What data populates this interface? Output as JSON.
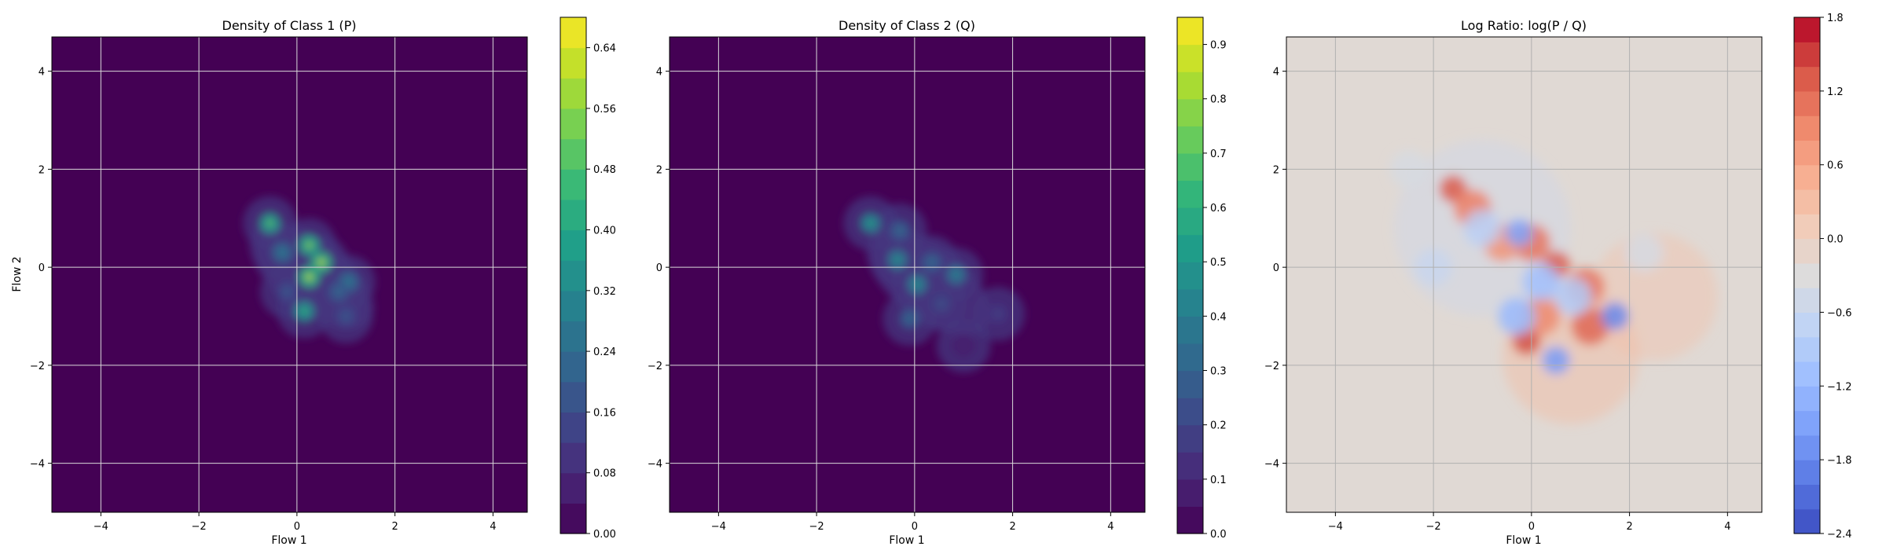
{
  "chart_data": [
    {
      "type": "heatmap",
      "title": "Density of Class 1 (P)",
      "xlabel": "Flow 1",
      "ylabel": "Flow 2",
      "xlim": [
        -5,
        4.7
      ],
      "ylim": [
        -5,
        4.7
      ],
      "xticks": [
        -4,
        -2,
        0,
        2,
        4
      ],
      "yticks": [
        -4,
        -2,
        0,
        2,
        4
      ],
      "grid": true,
      "colormap": "viridis",
      "colorbar": {
        "ticks": [
          0.0,
          0.08,
          0.16,
          0.24,
          0.32,
          0.4,
          0.48,
          0.56,
          0.64
        ],
        "tick_labels": [
          "0.00",
          "0.08",
          "0.16",
          "0.24",
          "0.32",
          "0.40",
          "0.48",
          "0.56",
          "0.64"
        ],
        "range": [
          0,
          0.68
        ],
        "levels": 17
      },
      "density_blobs": [
        {
          "x": -0.55,
          "y": 0.9,
          "peak": 0.5
        },
        {
          "x": 0.25,
          "y": 0.45,
          "peak": 0.55
        },
        {
          "x": 0.5,
          "y": 0.1,
          "peak": 0.6
        },
        {
          "x": 0.25,
          "y": -0.2,
          "peak": 0.6
        },
        {
          "x": -0.3,
          "y": 0.3,
          "peak": 0.3
        },
        {
          "x": 1.05,
          "y": -0.3,
          "peak": 0.3
        },
        {
          "x": 0.15,
          "y": -0.9,
          "peak": 0.45
        },
        {
          "x": 0.85,
          "y": -0.5,
          "peak": 0.25
        },
        {
          "x": -0.2,
          "y": -0.5,
          "peak": 0.2
        },
        {
          "x": 1.0,
          "y": -1.0,
          "peak": 0.2
        }
      ]
    },
    {
      "type": "heatmap",
      "title": "Density of Class 2 (Q)",
      "xlabel": "Flow 1",
      "ylabel": "",
      "xlim": [
        -5,
        4.7
      ],
      "ylim": [
        -5,
        4.7
      ],
      "xticks": [
        -4,
        -2,
        0,
        2,
        4
      ],
      "yticks": [
        -4,
        -2,
        0,
        2,
        4
      ],
      "grid": true,
      "colormap": "viridis",
      "colorbar": {
        "ticks": [
          0.0,
          0.1,
          0.2,
          0.3,
          0.4,
          0.5,
          0.6,
          0.7,
          0.8,
          0.9
        ],
        "tick_labels": [
          "0.0",
          "0.1",
          "0.2",
          "0.3",
          "0.4",
          "0.5",
          "0.6",
          "0.7",
          "0.8",
          "0.9"
        ],
        "range": [
          0,
          0.95
        ],
        "levels": 19
      },
      "density_blobs": [
        {
          "x": -0.9,
          "y": 0.9,
          "peak": 0.55
        },
        {
          "x": -0.3,
          "y": 0.75,
          "peak": 0.35
        },
        {
          "x": -0.35,
          "y": 0.15,
          "peak": 0.5
        },
        {
          "x": 0.05,
          "y": -0.35,
          "peak": 0.5
        },
        {
          "x": 0.85,
          "y": -0.15,
          "peak": 0.45
        },
        {
          "x": 0.35,
          "y": 0.1,
          "peak": 0.35
        },
        {
          "x": -0.1,
          "y": -1.05,
          "peak": 0.35
        },
        {
          "x": 0.55,
          "y": -0.75,
          "peak": 0.25
        },
        {
          "x": 1.7,
          "y": -0.95,
          "peak": 0.2
        },
        {
          "x": 1.0,
          "y": -1.6,
          "peak": 0.1
        }
      ]
    },
    {
      "type": "heatmap",
      "title": "Log Ratio: log(P / Q)",
      "xlabel": "Flow 1",
      "ylabel": "",
      "xlim": [
        -5,
        4.7
      ],
      "ylim": [
        -5,
        4.7
      ],
      "xticks": [
        -4,
        -2,
        0,
        2,
        4
      ],
      "yticks": [
        -4,
        -2,
        0,
        2,
        4
      ],
      "grid": true,
      "colormap": "coolwarm",
      "colorbar": {
        "ticks": [
          -2.4,
          -1.8,
          -1.2,
          -0.6,
          0.0,
          0.6,
          1.2,
          1.8
        ],
        "tick_labels": [
          "−2.4",
          "−1.8",
          "−1.2",
          "−0.6",
          "0.0",
          "0.6",
          "1.2",
          "1.8"
        ],
        "range": [
          -2.4,
          1.8
        ],
        "levels": 21
      },
      "ratio_blobs": [
        {
          "x": -1.6,
          "y": 1.6,
          "value": 1.3
        },
        {
          "x": -1.2,
          "y": 1.2,
          "value": 1.0
        },
        {
          "x": 0.0,
          "y": 0.5,
          "value": 1.1
        },
        {
          "x": 0.5,
          "y": 0.05,
          "value": 1.3
        },
        {
          "x": 1.1,
          "y": -0.4,
          "value": 1.1
        },
        {
          "x": 1.2,
          "y": -1.2,
          "value": 1.2
        },
        {
          "x": -0.1,
          "y": -1.5,
          "value": 1.4
        },
        {
          "x": -0.6,
          "y": 0.5,
          "value": 0.8
        },
        {
          "x": 0.2,
          "y": -1.0,
          "value": 0.9
        },
        {
          "x": -1.0,
          "y": 0.8,
          "value": -0.8
        },
        {
          "x": -0.25,
          "y": 0.7,
          "value": -1.5
        },
        {
          "x": 0.2,
          "y": -0.3,
          "value": -1.1
        },
        {
          "x": 0.85,
          "y": -0.6,
          "value": -0.9
        },
        {
          "x": 1.7,
          "y": -1.0,
          "value": -1.8
        },
        {
          "x": 0.5,
          "y": -1.9,
          "value": -1.6
        },
        {
          "x": -0.3,
          "y": -1.0,
          "value": -1.2
        },
        {
          "x": -2.0,
          "y": 0.0,
          "value": -0.6
        },
        {
          "x": -2.5,
          "y": 2.0,
          "value": -0.4
        },
        {
          "x": 2.3,
          "y": 0.3,
          "value": -0.4
        }
      ]
    }
  ]
}
